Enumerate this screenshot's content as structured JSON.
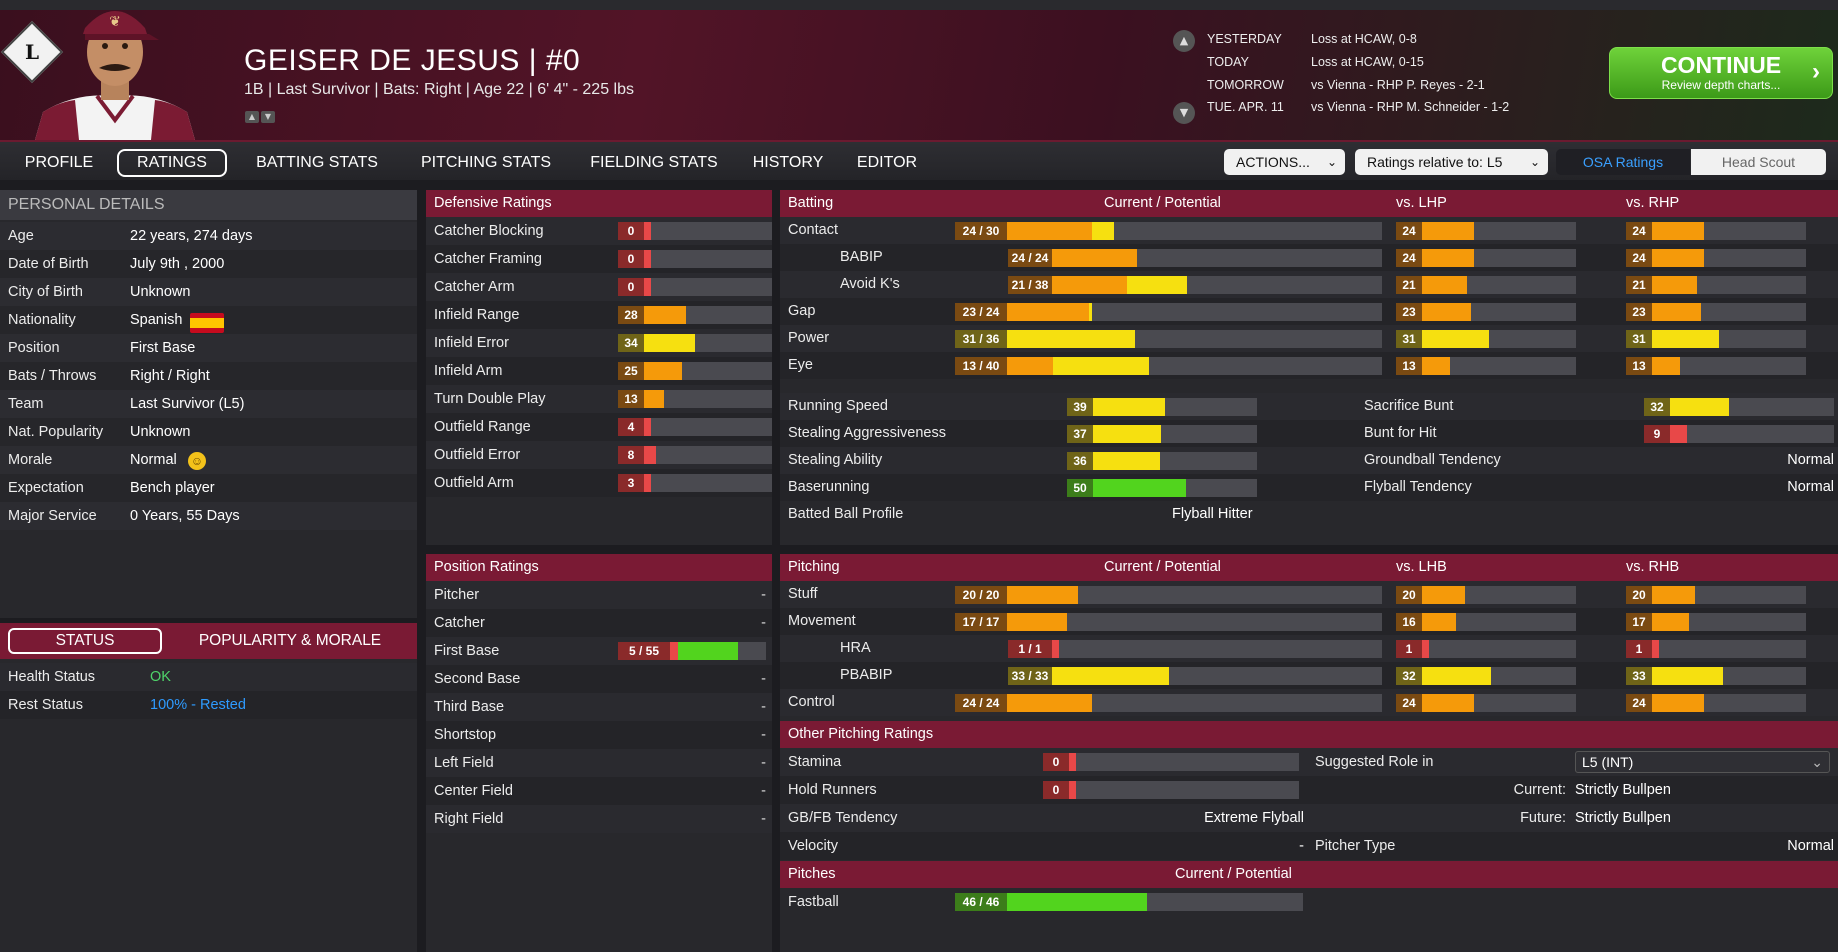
{
  "player": {
    "team_logo": "L",
    "name": "GEISER DE JESUS  |  #0",
    "info": "1B | Last Survivor  |  Bats: Right  |  Age 22  |  6' 4\" - 225 lbs"
  },
  "schedule": [
    {
      "day": "YESTERDAY",
      "text": "Loss at HCAW, 0-8"
    },
    {
      "day": "TODAY",
      "text": "Loss at HCAW, 0-15"
    },
    {
      "day": "TOMORROW",
      "text": "vs Vienna - RHP P. Reyes - 2-1"
    },
    {
      "day": "TUE. APR. 11",
      "text": "vs Vienna - RHP M. Schneider - 1-2"
    }
  ],
  "continue": {
    "label": "CONTINUE",
    "sub": "Review depth charts...",
    "icon": "chevron-right-icon"
  },
  "tabs": [
    "PROFILE",
    "RATINGS",
    "BATTING STATS",
    "PITCHING STATS",
    "FIELDING STATS",
    "HISTORY",
    "EDITOR"
  ],
  "active_tab": "RATINGS",
  "actions": {
    "label": "ACTIONS..."
  },
  "relative": {
    "label": "Ratings relative to: L5"
  },
  "scout": {
    "osa": "OSA Ratings",
    "head": "Head Scout"
  },
  "personal": {
    "title": "PERSONAL DETAILS",
    "rows": [
      {
        "label": "Age",
        "value": "22 years, 274 days"
      },
      {
        "label": "Date of Birth",
        "value": "July 9th , 2000"
      },
      {
        "label": "City of Birth",
        "value": "Unknown"
      },
      {
        "label": "Nationality",
        "value": "Spanish"
      },
      {
        "label": "Position",
        "value": "First Base"
      },
      {
        "label": "Bats / Throws",
        "value": "Right / Right"
      },
      {
        "label": "Team",
        "value": "Last Survivor (L5)"
      },
      {
        "label": "Nat. Popularity",
        "value": "Unknown"
      },
      {
        "label": "Morale",
        "value": "Normal"
      },
      {
        "label": "Expectation",
        "value": "Bench player"
      },
      {
        "label": "Major Service",
        "value": "0 Years, 55 Days"
      }
    ]
  },
  "status": {
    "tab1": "STATUS",
    "tab2": "POPULARITY & MORALE",
    "rows": [
      {
        "label": "Health Status",
        "value": "OK",
        "color": "#4fd36a"
      },
      {
        "label": "Rest Status",
        "value": "100% - Rested",
        "color": "#2e9bff"
      }
    ]
  },
  "defensive": {
    "title": "Defensive Ratings",
    "rows": [
      {
        "label": "Catcher Blocking",
        "value": 0
      },
      {
        "label": "Catcher Framing",
        "value": 0
      },
      {
        "label": "Catcher Arm",
        "value": 0
      },
      {
        "label": "Infield Range",
        "value": 28
      },
      {
        "label": "Infield Error",
        "value": 34
      },
      {
        "label": "Infield Arm",
        "value": 25
      },
      {
        "label": "Turn Double Play",
        "value": 13
      },
      {
        "label": "Outfield Range",
        "value": 4
      },
      {
        "label": "Outfield Error",
        "value": 8
      },
      {
        "label": "Outfield Arm",
        "value": 3
      }
    ]
  },
  "position": {
    "title": "Position Ratings",
    "rows": [
      {
        "label": "Pitcher",
        "value": "-"
      },
      {
        "label": "Catcher",
        "value": "-"
      },
      {
        "label": "First Base",
        "value": "5 / 55",
        "cur": 5,
        "pot": 55
      },
      {
        "label": "Second Base",
        "value": "-"
      },
      {
        "label": "Third Base",
        "value": "-"
      },
      {
        "label": "Shortstop",
        "value": "-"
      },
      {
        "label": "Left Field",
        "value": "-"
      },
      {
        "label": "Center Field",
        "value": "-"
      },
      {
        "label": "Right Field",
        "value": "-"
      }
    ]
  },
  "batting": {
    "title": "Batting",
    "cp": "Current / Potential",
    "vl": "vs. LHP",
    "vr": "vs. RHP",
    "rows": [
      {
        "label": "Contact",
        "cur": 24,
        "pot": 30,
        "vl": 24,
        "vr": 24,
        "indent": false
      },
      {
        "label": "BABIP",
        "cur": 24,
        "pot": 24,
        "vl": 24,
        "vr": 24,
        "indent": true
      },
      {
        "label": "Avoid K's",
        "cur": 21,
        "pot": 38,
        "vl": 21,
        "vr": 21,
        "indent": true
      },
      {
        "label": "Gap",
        "cur": 23,
        "pot": 24,
        "vl": 23,
        "vr": 23,
        "indent": false
      },
      {
        "label": "Power",
        "cur": 31,
        "pot": 36,
        "vl": 31,
        "vr": 31,
        "indent": false
      },
      {
        "label": "Eye",
        "cur": 13,
        "pot": 40,
        "vl": 13,
        "vr": 13,
        "indent": false
      }
    ],
    "misc_left": [
      {
        "label": "Running Speed",
        "value": 39
      },
      {
        "label": "Stealing Aggressiveness",
        "value": 37
      },
      {
        "label": "Stealing Ability",
        "value": 36
      },
      {
        "label": "Baserunning",
        "value": 50
      }
    ],
    "misc_right": [
      {
        "label": "Sacrifice Bunt",
        "value": 32
      },
      {
        "label": "Bunt for Hit",
        "value": 9
      }
    ],
    "gb_label": "Groundball Tendency",
    "gb_value": "Normal",
    "fb_label": "Flyball Tendency",
    "fb_value": "Normal",
    "bbp_label": "Batted Ball Profile",
    "bbp_value": "Flyball Hitter"
  },
  "pitching": {
    "title": "Pitching",
    "cp": "Current / Potential",
    "vl": "vs. LHB",
    "vr": "vs. RHB",
    "rows": [
      {
        "label": "Stuff",
        "cur": 20,
        "pot": 20,
        "vl": 20,
        "vr": 20,
        "indent": false
      },
      {
        "label": "Movement",
        "cur": 17,
        "pot": 17,
        "vl": 16,
        "vr": 17,
        "indent": false
      },
      {
        "label": "HRA",
        "cur": 1,
        "pot": 1,
        "vl": 1,
        "vr": 1,
        "indent": true
      },
      {
        "label": "PBABIP",
        "cur": 33,
        "pot": 33,
        "vl": 32,
        "vr": 33,
        "indent": true
      },
      {
        "label": "Control",
        "cur": 24,
        "pot": 24,
        "vl": 24,
        "vr": 24,
        "indent": false
      }
    ]
  },
  "other": {
    "title": "Other Pitching Ratings",
    "stamina": {
      "label": "Stamina",
      "value": 0
    },
    "hold": {
      "label": "Hold Runners",
      "value": 0
    },
    "gbfb_label": "GB/FB Tendency",
    "gbfb_value": "Extreme Flyball",
    "vel_label": "Velocity",
    "vel_value": "-",
    "role_label": "Suggested Role in",
    "role_select": "L5 (INT)",
    "cur_label": "Current:",
    "cur_value": "Strictly Bullpen",
    "fut_label": "Future:",
    "fut_value": "Strictly Bullpen",
    "ptype_label": "Pitcher Type",
    "ptype_value": "Normal"
  },
  "pitches": {
    "title": "Pitches",
    "cp": "Current / Potential",
    "rows": [
      {
        "label": "Fastball",
        "cur": 46,
        "pot": 46
      }
    ]
  },
  "colors": {
    "red": "#e84848",
    "orange": "#f59a0a",
    "yellow": "#f6e010",
    "green": "#52d41e",
    "maroon": "#7a1a34"
  }
}
